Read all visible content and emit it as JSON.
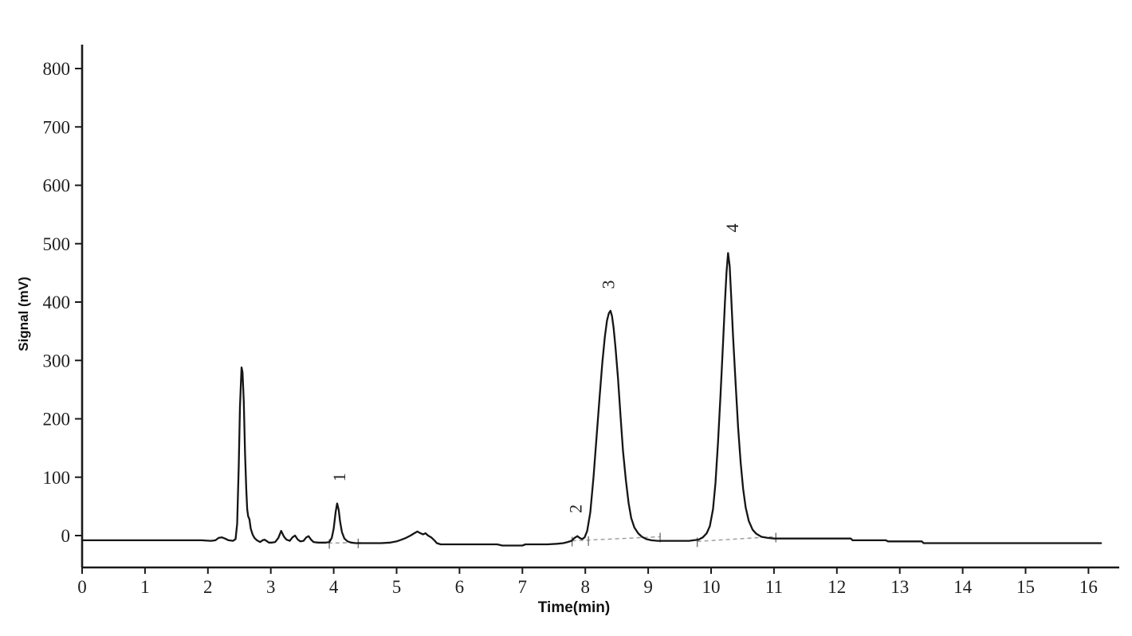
{
  "figure": {
    "background": "#ffffff",
    "trace_color": "#151515",
    "axis_color": "#1a1a1a",
    "baseline_dash_color": "#9a9a9a",
    "integration_tick_color": "#6f6f6f"
  },
  "chart_data": {
    "type": "line",
    "title": "",
    "xlabel": "Time(min)",
    "ylabel": "Signal (mV)",
    "xlim": [
      0,
      16.5
    ],
    "ylim": [
      -55,
      841
    ],
    "grid": false,
    "legend": "none",
    "x_ticks": [
      0,
      1,
      2,
      3,
      4,
      5,
      6,
      7,
      8,
      9,
      10,
      11,
      12,
      13,
      14,
      15,
      16
    ],
    "y_ticks": [
      0,
      100,
      200,
      300,
      400,
      500,
      600,
      700,
      800
    ],
    "peaks": [
      {
        "label": "1",
        "retention_time_min": 4.06,
        "apex_mV": 55,
        "label_pos": {
          "t": 4.18,
          "mV": 100
        }
      },
      {
        "label": "2",
        "retention_time_min": 7.88,
        "apex_mV": -1,
        "label_pos": {
          "t": 7.94,
          "mV": 46
        }
      },
      {
        "label": "3",
        "retention_time_min": 8.4,
        "apex_mV": 385,
        "label_pos": {
          "t": 8.46,
          "mV": 430
        }
      },
      {
        "label": "4",
        "retention_time_min": 10.27,
        "apex_mV": 484,
        "label_pos": {
          "t": 10.43,
          "mV": 527
        }
      }
    ],
    "unlabeled_features": [
      {
        "description": "solvent front peak",
        "retention_time_min": 2.54,
        "apex_mV": 288
      },
      {
        "description": "broad hump",
        "retention_time_min": 5.33,
        "apex_mV": 7
      }
    ],
    "series": [
      {
        "name": "chromatogram-signal",
        "points": [
          [
            0,
            -8
          ],
          [
            0.5,
            -8
          ],
          [
            1.0,
            -8
          ],
          [
            1.5,
            -8
          ],
          [
            1.9,
            -8
          ],
          [
            2.05,
            -9
          ],
          [
            2.12,
            -8
          ],
          [
            2.17,
            -4
          ],
          [
            2.22,
            -3
          ],
          [
            2.27,
            -5
          ],
          [
            2.33,
            -8
          ],
          [
            2.4,
            -9
          ],
          [
            2.44,
            -6
          ],
          [
            2.465,
            20
          ],
          [
            2.49,
            120
          ],
          [
            2.51,
            220
          ],
          [
            2.535,
            288
          ],
          [
            2.55,
            280
          ],
          [
            2.57,
            230
          ],
          [
            2.59,
            140
          ],
          [
            2.61,
            80
          ],
          [
            2.625,
            45
          ],
          [
            2.64,
            33
          ],
          [
            2.66,
            28
          ],
          [
            2.68,
            12
          ],
          [
            2.71,
            2
          ],
          [
            2.74,
            -4
          ],
          [
            2.78,
            -8
          ],
          [
            2.83,
            -11
          ],
          [
            2.87,
            -8
          ],
          [
            2.9,
            -7
          ],
          [
            2.93,
            -9
          ],
          [
            2.97,
            -12
          ],
          [
            3.02,
            -12
          ],
          [
            3.07,
            -11
          ],
          [
            3.12,
            -4
          ],
          [
            3.165,
            8
          ],
          [
            3.21,
            -2
          ],
          [
            3.25,
            -7
          ],
          [
            3.3,
            -9
          ],
          [
            3.345,
            -3
          ],
          [
            3.385,
            0
          ],
          [
            3.43,
            -7
          ],
          [
            3.47,
            -10
          ],
          [
            3.52,
            -9
          ],
          [
            3.565,
            -3
          ],
          [
            3.6,
            -1
          ],
          [
            3.64,
            -7
          ],
          [
            3.68,
            -11
          ],
          [
            3.75,
            -12
          ],
          [
            3.82,
            -12
          ],
          [
            3.88,
            -12
          ],
          [
            3.93,
            -11
          ],
          [
            3.97,
            -4
          ],
          [
            4.0,
            12
          ],
          [
            4.03,
            40
          ],
          [
            4.055,
            55
          ],
          [
            4.08,
            44
          ],
          [
            4.1,
            25
          ],
          [
            4.13,
            6
          ],
          [
            4.17,
            -5
          ],
          [
            4.22,
            -10
          ],
          [
            4.28,
            -12
          ],
          [
            4.35,
            -13
          ],
          [
            4.45,
            -13
          ],
          [
            4.6,
            -13
          ],
          [
            4.75,
            -13
          ],
          [
            4.9,
            -12
          ],
          [
            5.0,
            -10
          ],
          [
            5.08,
            -7
          ],
          [
            5.15,
            -4
          ],
          [
            5.22,
            0
          ],
          [
            5.28,
            4
          ],
          [
            5.33,
            7
          ],
          [
            5.38,
            4
          ],
          [
            5.42,
            2
          ],
          [
            5.46,
            4
          ],
          [
            5.5,
            0
          ],
          [
            5.55,
            -3
          ],
          [
            5.6,
            -8
          ],
          [
            5.64,
            -13
          ],
          [
            5.7,
            -15
          ],
          [
            5.8,
            -15
          ],
          [
            6.0,
            -15
          ],
          [
            6.2,
            -15
          ],
          [
            6.4,
            -15
          ],
          [
            6.6,
            -15
          ],
          [
            6.68,
            -17
          ],
          [
            6.85,
            -17
          ],
          [
            7.0,
            -17
          ],
          [
            7.05,
            -15
          ],
          [
            7.2,
            -15
          ],
          [
            7.4,
            -15
          ],
          [
            7.55,
            -14
          ],
          [
            7.65,
            -13
          ],
          [
            7.72,
            -11
          ],
          [
            7.78,
            -9
          ],
          [
            7.83,
            -4
          ],
          [
            7.875,
            -1
          ],
          [
            7.91,
            -4
          ],
          [
            7.95,
            -6
          ],
          [
            7.99,
            -3
          ],
          [
            8.03,
            8
          ],
          [
            8.08,
            40
          ],
          [
            8.13,
            100
          ],
          [
            8.18,
            170
          ],
          [
            8.23,
            240
          ],
          [
            8.27,
            295
          ],
          [
            8.31,
            340
          ],
          [
            8.345,
            368
          ],
          [
            8.375,
            381
          ],
          [
            8.4,
            385
          ],
          [
            8.425,
            376
          ],
          [
            8.45,
            356
          ],
          [
            8.48,
            322
          ],
          [
            8.52,
            270
          ],
          [
            8.56,
            205
          ],
          [
            8.6,
            145
          ],
          [
            8.645,
            95
          ],
          [
            8.69,
            55
          ],
          [
            8.73,
            30
          ],
          [
            8.78,
            14
          ],
          [
            8.84,
            4
          ],
          [
            8.9,
            -2
          ],
          [
            8.97,
            -6
          ],
          [
            9.05,
            -8
          ],
          [
            9.15,
            -9
          ],
          [
            9.3,
            -9
          ],
          [
            9.5,
            -9
          ],
          [
            9.65,
            -9
          ],
          [
            9.72,
            -8
          ],
          [
            9.8,
            -7
          ],
          [
            9.87,
            -3
          ],
          [
            9.93,
            4
          ],
          [
            9.98,
            16
          ],
          [
            10.03,
            45
          ],
          [
            10.07,
            90
          ],
          [
            10.11,
            160
          ],
          [
            10.15,
            240
          ],
          [
            10.19,
            330
          ],
          [
            10.22,
            400
          ],
          [
            10.245,
            450
          ],
          [
            10.27,
            484
          ],
          [
            10.295,
            462
          ],
          [
            10.32,
            410
          ],
          [
            10.35,
            340
          ],
          [
            10.39,
            260
          ],
          [
            10.43,
            185
          ],
          [
            10.47,
            125
          ],
          [
            10.51,
            80
          ],
          [
            10.55,
            48
          ],
          [
            10.6,
            25
          ],
          [
            10.66,
            10
          ],
          [
            10.72,
            3
          ],
          [
            10.8,
            -2
          ],
          [
            10.9,
            -4
          ],
          [
            11.0,
            -5
          ],
          [
            11.2,
            -5
          ],
          [
            11.5,
            -5
          ],
          [
            11.8,
            -5
          ],
          [
            12.1,
            -5
          ],
          [
            12.22,
            -5
          ],
          [
            12.25,
            -8
          ],
          [
            12.5,
            -8
          ],
          [
            12.78,
            -8
          ],
          [
            12.81,
            -10
          ],
          [
            13.1,
            -10
          ],
          [
            13.35,
            -10
          ],
          [
            13.38,
            -13
          ],
          [
            13.6,
            -13
          ],
          [
            14.0,
            -13
          ],
          [
            14.5,
            -13
          ],
          [
            15.0,
            -13
          ],
          [
            15.5,
            -13
          ],
          [
            16.0,
            -13
          ],
          [
            16.2,
            -13
          ]
        ]
      }
    ],
    "integration_baselines": [
      {
        "from": {
          "t": 3.8,
          "mV": -13
        },
        "to": {
          "t": 4.45,
          "mV": -12
        }
      },
      {
        "from": {
          "t": 7.79,
          "mV": -9
        },
        "to": {
          "t": 9.19,
          "mV": -2
        }
      },
      {
        "from": {
          "t": 9.78,
          "mV": -10
        },
        "to": {
          "t": 10.98,
          "mV": -2
        }
      }
    ],
    "integration_ticks": [
      {
        "t": 3.93,
        "mV": -13
      },
      {
        "t": 4.39,
        "mV": -12
      },
      {
        "t": 7.79,
        "mV": -9
      },
      {
        "t": 8.05,
        "mV": -8
      },
      {
        "t": 9.19,
        "mV": -2
      },
      {
        "t": 9.78,
        "mV": -10
      },
      {
        "t": 11.03,
        "mV": -2
      }
    ]
  }
}
